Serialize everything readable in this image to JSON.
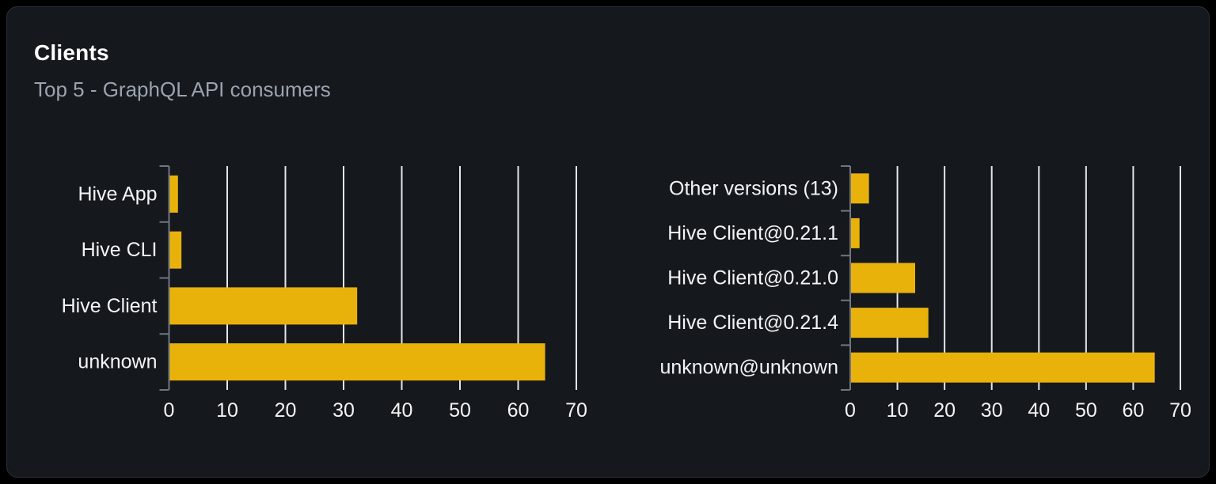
{
  "card": {
    "title": "Clients",
    "subtitle": "Top 5 - GraphQL API consumers"
  },
  "colors": {
    "bar": "#e9b20b",
    "grid": "#e2e6ea",
    "axis": "#717680",
    "text": "#f3f4f6",
    "subtitle_text": "#9ca3af",
    "card_bg": "#15181d",
    "card_border": "#2b2f37",
    "page_bg": "#000000"
  },
  "chart_data": [
    {
      "type": "bar",
      "orientation": "horizontal",
      "title": "Clients (left chart: by client name)",
      "categories": [
        "Hive App",
        "Hive CLI",
        "Hive Client",
        "unknown"
      ],
      "values": [
        1.4,
        2.0,
        32.2,
        64.5
      ],
      "xlabel": "",
      "ylabel": "",
      "xlim": [
        0,
        70
      ],
      "xticks": [
        0,
        10,
        20,
        30,
        40,
        50,
        60,
        70
      ],
      "grid": true,
      "legend": null
    },
    {
      "type": "bar",
      "orientation": "horizontal",
      "title": "Clients (right chart: by client version)",
      "categories": [
        "Other versions (13)",
        "Hive Client@0.21.1",
        "Hive Client@0.21.0",
        "Hive Client@0.21.4",
        "unknown@unknown"
      ],
      "values": [
        3.8,
        1.8,
        13.6,
        16.4,
        64.4
      ],
      "xlabel": "",
      "ylabel": "",
      "xlim": [
        0,
        70
      ],
      "xticks": [
        0,
        10,
        20,
        30,
        40,
        50,
        60,
        70
      ],
      "grid": true,
      "legend": null
    }
  ]
}
